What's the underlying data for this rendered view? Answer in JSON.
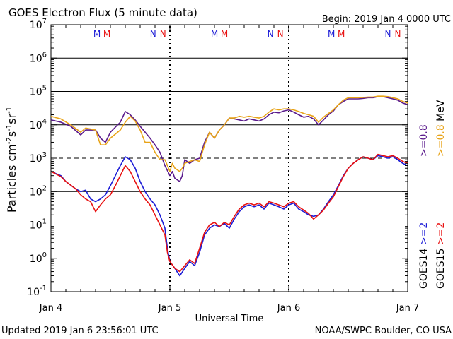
{
  "header": {
    "title": "GOES Electron Flux (5 minute data)",
    "begin": "Begin: 2019 Jan 4 0000 UTC"
  },
  "footer": {
    "updated": "Updated 2019 Jan  6 23:56:01 UTC",
    "credit": "NOAA/SWPC Boulder, CO USA"
  },
  "colors": {
    "goes14_ge2": "#1c1cd6",
    "goes15_ge2": "#e81010",
    "goes14_ge08": "#5a1a8c",
    "goes15_ge08": "#e8a317",
    "m_blue": "#1c1cd6",
    "m_red": "#e81010",
    "n_blue": "#1c1cd6",
    "n_red": "#e81010"
  },
  "chart_data": {
    "type": "line",
    "title": "GOES Electron Flux (5 minute data)",
    "xlabel": "Universal Time",
    "ylabel": "Particles cm^-2 s^-1 sr^-1",
    "ylabel_parts": {
      "base": "Particles cm",
      "e1": "-2",
      "mid1": "s",
      "e2": "-1",
      "mid2": "sr",
      "e3": "-1"
    },
    "y_scale": "log",
    "ylim_exponents": [
      -1,
      7
    ],
    "ytick_base": "10",
    "ytick_exponents": [
      "7",
      "6",
      "5",
      "4",
      "3",
      "2",
      "1",
      "0",
      "-1"
    ],
    "xlim_hours": [
      0,
      72
    ],
    "xticks": [
      {
        "label": "Jan 4",
        "hour": 0
      },
      {
        "label": "Jan 5",
        "hour": 24
      },
      {
        "label": "Jan 6",
        "hour": 48
      },
      {
        "label": "Jan 7",
        "hour": 72
      }
    ],
    "solid_gridlines_exponents": [
      1,
      2,
      4,
      5,
      6
    ],
    "dashed_line_exponent": 3,
    "dashed_line_note": "alert threshold 10^3",
    "dotted_day_lines_hours": [
      24,
      48
    ],
    "midnight_noon_markers": [
      {
        "letters": [
          "M",
          "M"
        ],
        "hour": 10.3
      },
      {
        "letters": [
          "N",
          "N"
        ],
        "hour": 21.6
      },
      {
        "letters": [
          "M",
          "M"
        ],
        "hour": 34.0
      },
      {
        "letters": [
          "N",
          "N"
        ],
        "hour": 45.3
      },
      {
        "letters": [
          "M",
          "M"
        ],
        "hour": 57.6
      },
      {
        "letters": [
          "N",
          "N"
        ],
        "hour": 69.0
      }
    ],
    "legend": [
      {
        "name": "GOES14 >=2",
        "satellite": "GOES14",
        "channel": ">=2",
        "colorKey": "goes14_ge2"
      },
      {
        "name": "GOES14 >=0.8 MeV",
        "satellite": "GOES14",
        "channel": ">=0.8",
        "colorKey": "goes14_ge08"
      },
      {
        "name": "GOES15 >=2",
        "satellite": "GOES15",
        "channel": ">=2",
        "colorKey": "goes15_ge2"
      },
      {
        "name": "GOES15 >=0.8 MeV",
        "satellite": "GOES15",
        "channel": ">=0.8",
        "colorKey": "goes15_ge08"
      }
    ],
    "legend_unit": "MeV",
    "legend_position": "right, vertical text",
    "series": [
      {
        "name": "GOES14 >=0.8 MeV",
        "colorKey": "goes14_ge08",
        "points": [
          [
            0,
            14000
          ],
          [
            2,
            12000
          ],
          [
            4,
            9000
          ],
          [
            6,
            5000
          ],
          [
            7,
            7000
          ],
          [
            9,
            7000
          ],
          [
            10,
            4000
          ],
          [
            11,
            3000
          ],
          [
            12,
            6000
          ],
          [
            14,
            12000
          ],
          [
            15,
            25000
          ],
          [
            16,
            20000
          ],
          [
            17,
            14000
          ],
          [
            18,
            9000
          ],
          [
            19,
            6000
          ],
          [
            20,
            4000
          ],
          [
            21,
            2500
          ],
          [
            22,
            1500
          ],
          [
            23,
            600
          ],
          [
            24,
            300
          ],
          [
            24.5,
            400
          ],
          [
            25,
            250
          ],
          [
            26,
            200
          ],
          [
            26.5,
            300
          ],
          [
            27,
            900
          ],
          [
            28,
            700
          ],
          [
            29,
            900
          ],
          [
            30,
            1000
          ],
          [
            31,
            3000
          ],
          [
            32,
            6000
          ],
          [
            33,
            4000
          ],
          [
            34,
            7000
          ],
          [
            35,
            10000
          ],
          [
            36,
            16000
          ],
          [
            37,
            15000
          ],
          [
            38,
            14000
          ],
          [
            39,
            13000
          ],
          [
            40,
            15000
          ],
          [
            41,
            14000
          ],
          [
            42,
            13000
          ],
          [
            43,
            15000
          ],
          [
            44,
            20000
          ],
          [
            45,
            24000
          ],
          [
            46,
            23000
          ],
          [
            47,
            26000
          ],
          [
            48,
            28000
          ],
          [
            49,
            24000
          ],
          [
            50,
            20000
          ],
          [
            51,
            17000
          ],
          [
            52,
            18000
          ],
          [
            53,
            15000
          ],
          [
            54,
            10000
          ],
          [
            55,
            14000
          ],
          [
            56,
            20000
          ],
          [
            57,
            26000
          ],
          [
            58,
            40000
          ],
          [
            59,
            50000
          ],
          [
            60,
            60000
          ],
          [
            61,
            60000
          ],
          [
            62,
            60000
          ],
          [
            63,
            62000
          ],
          [
            64,
            65000
          ],
          [
            65,
            65000
          ],
          [
            66,
            70000
          ],
          [
            67,
            70000
          ],
          [
            68,
            65000
          ],
          [
            69,
            60000
          ],
          [
            70,
            55000
          ],
          [
            71,
            45000
          ],
          [
            72,
            40000
          ]
        ]
      },
      {
        "name": "GOES15 >=0.8 MeV",
        "colorKey": "goes15_ge08",
        "points": [
          [
            0,
            18000
          ],
          [
            2,
            15000
          ],
          [
            4,
            10000
          ],
          [
            6,
            6000
          ],
          [
            7,
            8000
          ],
          [
            9,
            7000
          ],
          [
            10,
            2500
          ],
          [
            11,
            2500
          ],
          [
            12,
            4000
          ],
          [
            14,
            7000
          ],
          [
            15,
            12000
          ],
          [
            16,
            18000
          ],
          [
            17,
            13000
          ],
          [
            18,
            7000
          ],
          [
            19,
            3000
          ],
          [
            20,
            3000
          ],
          [
            21,
            1500
          ],
          [
            22,
            900
          ],
          [
            23,
            900
          ],
          [
            24,
            400
          ],
          [
            24.5,
            700
          ],
          [
            25,
            500
          ],
          [
            26,
            400
          ],
          [
            26.5,
            500
          ],
          [
            27,
            700
          ],
          [
            28,
            800
          ],
          [
            29,
            900
          ],
          [
            30,
            800
          ],
          [
            31,
            2500
          ],
          [
            32,
            6000
          ],
          [
            33,
            4000
          ],
          [
            34,
            7000
          ],
          [
            35,
            10000
          ],
          [
            36,
            16000
          ],
          [
            37,
            16000
          ],
          [
            38,
            18000
          ],
          [
            39,
            17000
          ],
          [
            40,
            18000
          ],
          [
            41,
            17000
          ],
          [
            42,
            16000
          ],
          [
            43,
            18000
          ],
          [
            44,
            24000
          ],
          [
            45,
            30000
          ],
          [
            46,
            28000
          ],
          [
            47,
            30000
          ],
          [
            48,
            30000
          ],
          [
            49,
            28000
          ],
          [
            50,
            25000
          ],
          [
            51,
            22000
          ],
          [
            52,
            20000
          ],
          [
            53,
            18000
          ],
          [
            54,
            12000
          ],
          [
            55,
            17000
          ],
          [
            56,
            22000
          ],
          [
            57,
            28000
          ],
          [
            58,
            40000
          ],
          [
            59,
            55000
          ],
          [
            60,
            65000
          ],
          [
            61,
            65000
          ],
          [
            62,
            65000
          ],
          [
            63,
            66000
          ],
          [
            64,
            68000
          ],
          [
            65,
            68000
          ],
          [
            66,
            72000
          ],
          [
            67,
            72000
          ],
          [
            68,
            70000
          ],
          [
            69,
            65000
          ],
          [
            70,
            60000
          ],
          [
            71,
            50000
          ],
          [
            72,
            45000
          ]
        ]
      },
      {
        "name": "GOES14 >=2",
        "colorKey": "goes14_ge2",
        "points": [
          [
            0,
            400
          ],
          [
            2,
            300
          ],
          [
            3,
            200
          ],
          [
            5,
            120
          ],
          [
            6,
            100
          ],
          [
            7,
            110
          ],
          [
            8,
            60
          ],
          [
            9,
            50
          ],
          [
            10,
            60
          ],
          [
            11,
            80
          ],
          [
            12,
            150
          ],
          [
            13,
            300
          ],
          [
            14,
            600
          ],
          [
            15,
            1100
          ],
          [
            16,
            900
          ],
          [
            17,
            500
          ],
          [
            18,
            200
          ],
          [
            19,
            100
          ],
          [
            20,
            60
          ],
          [
            21,
            40
          ],
          [
            22,
            20
          ],
          [
            23,
            8
          ],
          [
            23.5,
            2
          ],
          [
            24,
            0.8
          ],
          [
            25,
            0.5
          ],
          [
            26,
            0.3
          ],
          [
            27,
            0.5
          ],
          [
            28,
            0.8
          ],
          [
            29,
            0.6
          ],
          [
            30,
            1.5
          ],
          [
            31,
            5
          ],
          [
            32,
            8
          ],
          [
            33,
            10
          ],
          [
            34,
            9
          ],
          [
            35,
            11
          ],
          [
            36,
            8
          ],
          [
            37,
            15
          ],
          [
            38,
            25
          ],
          [
            39,
            35
          ],
          [
            40,
            40
          ],
          [
            41,
            35
          ],
          [
            42,
            40
          ],
          [
            43,
            30
          ],
          [
            44,
            45
          ],
          [
            45,
            40
          ],
          [
            46,
            35
          ],
          [
            47,
            30
          ],
          [
            48,
            40
          ],
          [
            49,
            45
          ],
          [
            50,
            30
          ],
          [
            51,
            25
          ],
          [
            52,
            20
          ],
          [
            53,
            18
          ],
          [
            54,
            20
          ],
          [
            55,
            30
          ],
          [
            56,
            50
          ],
          [
            57,
            80
          ],
          [
            58,
            150
          ],
          [
            59,
            300
          ],
          [
            60,
            500
          ],
          [
            61,
            700
          ],
          [
            62,
            900
          ],
          [
            63,
            1100
          ],
          [
            64,
            1000
          ],
          [
            65,
            900
          ],
          [
            66,
            1200
          ],
          [
            67,
            1100
          ],
          [
            68,
            1000
          ],
          [
            69,
            1100
          ],
          [
            70,
            900
          ],
          [
            71,
            700
          ],
          [
            72,
            600
          ]
        ]
      },
      {
        "name": "GOES15 >=2",
        "colorKey": "goes15_ge2",
        "points": [
          [
            0,
            400
          ],
          [
            2,
            280
          ],
          [
            3,
            200
          ],
          [
            5,
            120
          ],
          [
            6,
            80
          ],
          [
            7,
            60
          ],
          [
            8,
            50
          ],
          [
            9,
            25
          ],
          [
            10,
            40
          ],
          [
            11,
            60
          ],
          [
            12,
            80
          ],
          [
            13,
            150
          ],
          [
            14,
            300
          ],
          [
            15,
            600
          ],
          [
            16,
            400
          ],
          [
            17,
            200
          ],
          [
            18,
            100
          ],
          [
            19,
            60
          ],
          [
            20,
            40
          ],
          [
            21,
            20
          ],
          [
            22,
            10
          ],
          [
            23,
            5
          ],
          [
            23.5,
            1.5
          ],
          [
            24,
            0.8
          ],
          [
            25,
            0.5
          ],
          [
            26,
            0.4
          ],
          [
            27,
            0.6
          ],
          [
            28,
            0.9
          ],
          [
            29,
            0.7
          ],
          [
            30,
            2
          ],
          [
            31,
            6
          ],
          [
            32,
            10
          ],
          [
            33,
            12
          ],
          [
            34,
            9
          ],
          [
            35,
            12
          ],
          [
            36,
            10
          ],
          [
            37,
            18
          ],
          [
            38,
            30
          ],
          [
            39,
            40
          ],
          [
            40,
            45
          ],
          [
            41,
            40
          ],
          [
            42,
            45
          ],
          [
            43,
            35
          ],
          [
            44,
            50
          ],
          [
            45,
            45
          ],
          [
            46,
            40
          ],
          [
            47,
            35
          ],
          [
            48,
            45
          ],
          [
            49,
            50
          ],
          [
            50,
            35
          ],
          [
            51,
            28
          ],
          [
            52,
            22
          ],
          [
            53,
            15
          ],
          [
            54,
            20
          ],
          [
            55,
            28
          ],
          [
            56,
            45
          ],
          [
            57,
            70
          ],
          [
            58,
            140
          ],
          [
            59,
            280
          ],
          [
            60,
            500
          ],
          [
            61,
            700
          ],
          [
            62,
            900
          ],
          [
            63,
            1100
          ],
          [
            64,
            1000
          ],
          [
            65,
            900
          ],
          [
            66,
            1300
          ],
          [
            67,
            1200
          ],
          [
            68,
            1100
          ],
          [
            69,
            1200
          ],
          [
            70,
            1000
          ],
          [
            71,
            800
          ],
          [
            72,
            700
          ]
        ]
      }
    ]
  }
}
